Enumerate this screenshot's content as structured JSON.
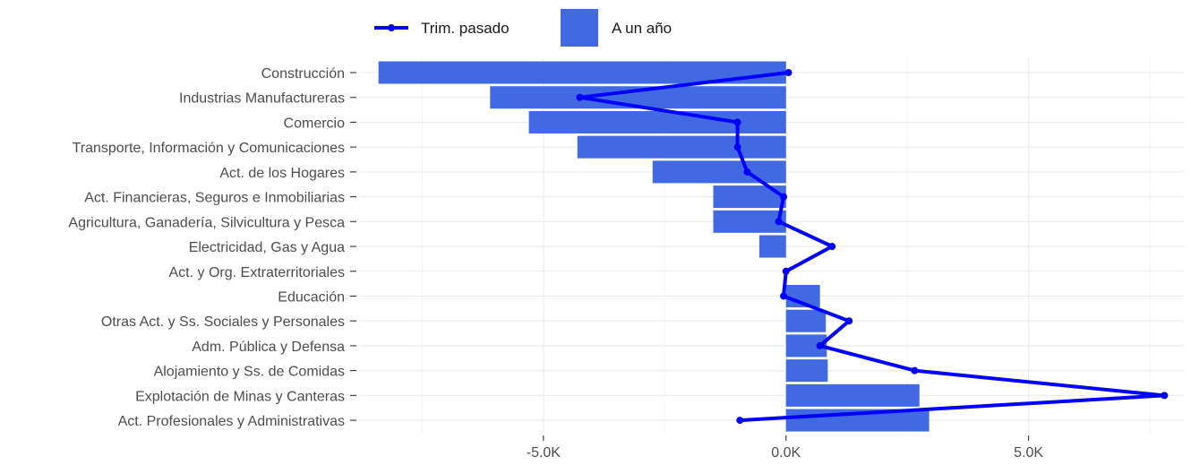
{
  "chart_data": {
    "type": "bar",
    "orientation": "horizontal",
    "categories": [
      "Construcción",
      "Industrias Manufactureras",
      "Comercio",
      "Transporte, Información y Comunicaciones",
      "Act. de los Hogares",
      "Act. Financieras, Seguros e Inmobiliarias",
      "Agricultura, Ganadería, Silvicultura y Pesca",
      "Electricidad, Gas y Agua",
      "Act. y Org. Extraterritoriales",
      "Educación",
      "Otras Act. y Ss. Sociales y Personales",
      "Adm. Pública y Defensa",
      "Alojamiento y Ss. de Comidas",
      "Explotación de Minas y Canteras",
      "Act. Profesionales y Administrativas"
    ],
    "series": [
      {
        "name": "A un año",
        "kind": "bar",
        "color": "#4169E1",
        "values": [
          -8400,
          -6100,
          -5300,
          -4300,
          -2750,
          -1500,
          -1500,
          -550,
          0,
          700,
          820,
          840,
          860,
          2750,
          2950
        ]
      },
      {
        "name": "Trim. pasado",
        "kind": "line",
        "color": "#0000FF",
        "values": [
          50,
          -4250,
          -1000,
          -1000,
          -800,
          -50,
          -150,
          950,
          0,
          -50,
          1300,
          700,
          2650,
          7800,
          -950
        ]
      }
    ],
    "xlim": [
      -8800,
      8200
    ],
    "xticks": [
      -5000,
      0,
      5000
    ],
    "xtick_labels": [
      "-5.0K",
      "0.0K",
      "5.0K"
    ],
    "legend_position": "top-left",
    "grid": true
  }
}
